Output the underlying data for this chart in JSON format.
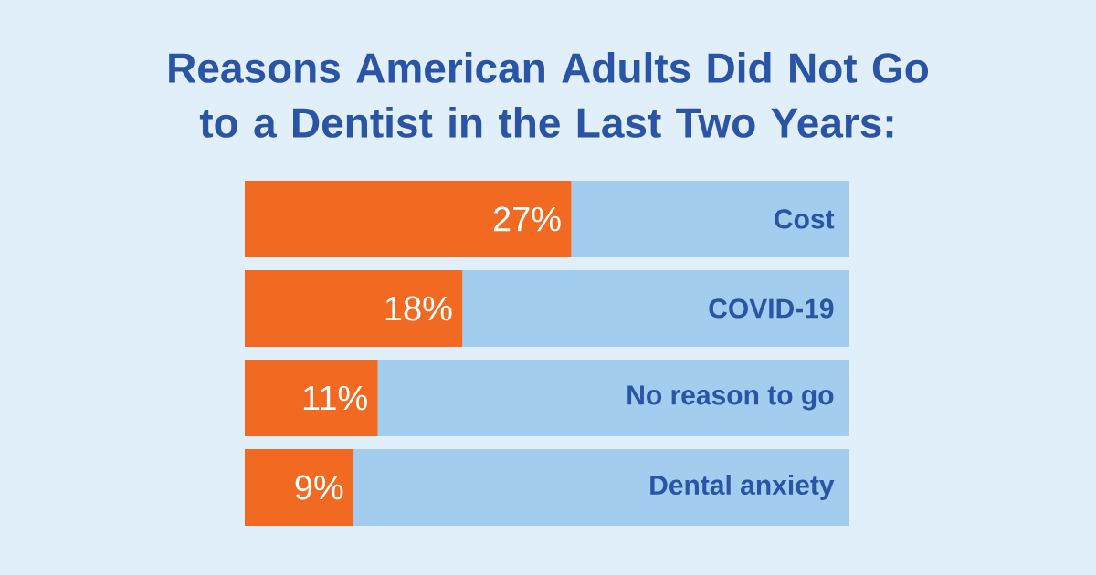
{
  "chart_data": {
    "type": "bar",
    "orientation": "horizontal",
    "stacked": true,
    "title": "Reasons American Adults Did Not Go to a Dentist in the Last Two Years:",
    "categories": [
      "Cost",
      "COVID-19",
      "No reason to go",
      "Dental anxiety"
    ],
    "xlim": [
      0,
      50
    ],
    "series": [
      {
        "color": "#f26a21",
        "values": [
          27,
          18,
          11,
          9
        ],
        "value_labels": [
          "27%",
          "18%",
          "11%",
          "9%"
        ]
      },
      {
        "color": "#a3cdee",
        "values": [
          23,
          32,
          39,
          41
        ]
      }
    ]
  }
}
